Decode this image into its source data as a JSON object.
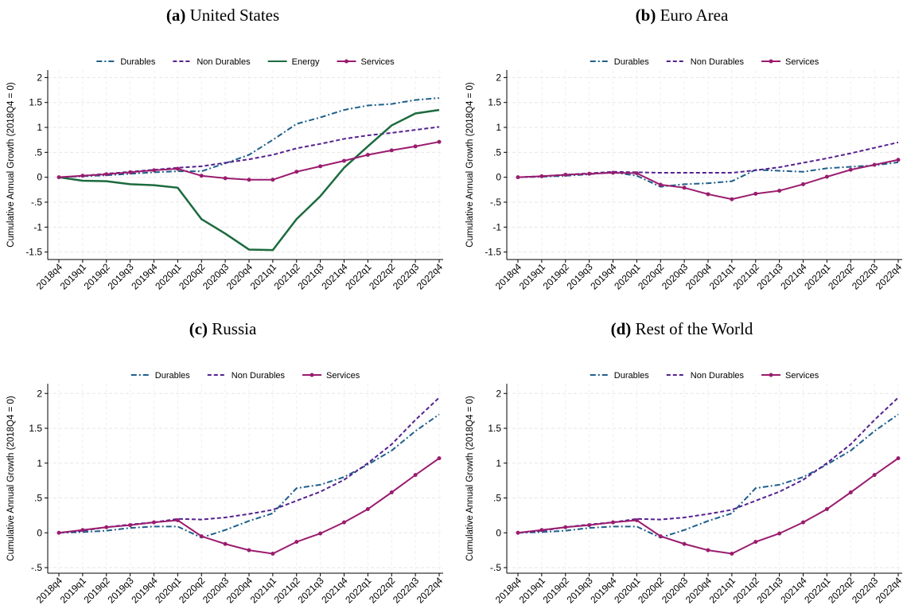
{
  "chart_data": [
    {
      "type": "line",
      "panel": "(a)",
      "title": "United States",
      "y_label": "Cumulative Annual Growth (2018Q4 = 0)",
      "categories": [
        "2018q4",
        "2019q1",
        "2019q2",
        "2019q3",
        "2019q4",
        "2020q1",
        "2020q2",
        "2020q3",
        "2020q4",
        "2021q1",
        "2021q2",
        "2021q3",
        "2021q4",
        "2022q1",
        "2022q2",
        "2022q3",
        "2022q4"
      ],
      "ylim": [
        -1.65,
        2.15
      ],
      "yticks": [
        {
          "value": -1.5,
          "label": "-1.5"
        },
        -1,
        {
          "value": -0.5,
          "label": "-.5"
        },
        0,
        {
          "value": 0.5,
          "label": ".5"
        },
        1,
        1.5,
        2
      ],
      "grid": true,
      "series": [
        {
          "name": "Durables",
          "color": "#1f5f8b",
          "dash": "dashdot",
          "values": [
            0,
            0.02,
            0.04,
            0.07,
            0.1,
            0.12,
            0.12,
            0.28,
            0.45,
            0.75,
            1.07,
            1.2,
            1.35,
            1.44,
            1.47,
            1.55,
            1.59
          ]
        },
        {
          "name": "Non Durables",
          "color": "#55218f",
          "dash": "dashed",
          "values": [
            0,
            0.03,
            0.07,
            0.11,
            0.15,
            0.19,
            0.22,
            0.29,
            0.36,
            0.45,
            0.58,
            0.67,
            0.77,
            0.84,
            0.89,
            0.95,
            1.01
          ]
        },
        {
          "name": "Energy",
          "color": "#1c6b3e",
          "dash": "solid",
          "values": [
            0,
            -0.07,
            -0.08,
            -0.14,
            -0.16,
            -0.21,
            -0.84,
            -1.13,
            -1.45,
            -1.46,
            -0.84,
            -0.38,
            0.19,
            0.62,
            1.04,
            1.28,
            1.35
          ]
        },
        {
          "name": "Services",
          "color": "#9a1c6e",
          "dash": "solid",
          "markers": true,
          "values": [
            0,
            0.03,
            0.06,
            0.1,
            0.14,
            0.17,
            0.03,
            -0.02,
            -0.05,
            -0.05,
            0.11,
            0.22,
            0.33,
            0.45,
            0.54,
            0.62,
            0.71
          ]
        }
      ]
    },
    {
      "type": "line",
      "panel": "(b)",
      "title": "Euro Area",
      "y_label": "Cumulative Annual Growth (2018Q4 = 0)",
      "categories": [
        "2018q4",
        "2019q1",
        "2019q2",
        "2019q3",
        "2019q4",
        "2020q1",
        "2020q2",
        "2020q3",
        "2020q4",
        "2021q1",
        "2021q2",
        "2021q3",
        "2021q4",
        "2022q1",
        "2022q2",
        "2022q3",
        "2022q4"
      ],
      "ylim": [
        -1.65,
        2.15
      ],
      "yticks": [
        {
          "value": -1.5,
          "label": "-1.5"
        },
        -1,
        {
          "value": -0.5,
          "label": "-.5"
        },
        0,
        {
          "value": 0.5,
          "label": ".5"
        },
        1,
        1.5,
        2
      ],
      "grid": true,
      "series": [
        {
          "name": "Durables",
          "color": "#1f5f8b",
          "dash": "dashdot",
          "values": [
            0,
            0.01,
            0.03,
            0.06,
            0.1,
            0.03,
            -0.19,
            -0.14,
            -0.12,
            -0.08,
            0.15,
            0.13,
            0.11,
            0.18,
            0.21,
            0.24,
            0.3
          ]
        },
        {
          "name": "Non Durables",
          "color": "#55218f",
          "dash": "dashed",
          "values": [
            0,
            0.02,
            0.05,
            0.08,
            0.11,
            0.1,
            0.09,
            0.09,
            0.09,
            0.09,
            0.14,
            0.2,
            0.29,
            0.38,
            0.48,
            0.59,
            0.7
          ]
        },
        {
          "name": "Services",
          "color": "#9a1c6e",
          "dash": "solid",
          "markers": true,
          "values": [
            0,
            0.02,
            0.05,
            0.07,
            0.09,
            0.08,
            -0.15,
            -0.21,
            -0.34,
            -0.44,
            -0.33,
            -0.27,
            -0.14,
            0.01,
            0.15,
            0.25,
            0.35
          ]
        }
      ]
    },
    {
      "type": "line",
      "panel": "(c)",
      "title": "Russia",
      "y_label": "Cumulative Annual Growth (2018Q4 = 0)",
      "categories": [
        "2018q4",
        "2019q1",
        "2019q2",
        "2019q3",
        "2019q4",
        "2020q1",
        "2020q2",
        "2020q3",
        "2020q4",
        "2021q1",
        "2021q2",
        "2021q3",
        "2021q4",
        "2022q1",
        "2022q2",
        "2022q3",
        "2022q4"
      ],
      "ylim": [
        -0.58,
        2.14
      ],
      "yticks": [
        {
          "value": -0.5,
          "label": "-.5"
        },
        0,
        {
          "value": 0.5,
          "label": ".5"
        },
        1,
        1.5,
        2
      ],
      "grid": true,
      "series": [
        {
          "name": "Durables",
          "color": "#1f5f8b",
          "dash": "dashdot",
          "values": [
            0,
            0.01,
            0.03,
            0.07,
            0.09,
            0.09,
            -0.07,
            0.04,
            0.17,
            0.28,
            0.64,
            0.69,
            0.8,
            0.98,
            1.18,
            1.46,
            1.7
          ]
        },
        {
          "name": "Non Durables",
          "color": "#55218f",
          "dash": "dashed",
          "values": [
            0,
            0.03,
            0.08,
            0.12,
            0.15,
            0.2,
            0.19,
            0.22,
            0.27,
            0.33,
            0.46,
            0.59,
            0.76,
            1.0,
            1.27,
            1.62,
            1.94
          ]
        },
        {
          "name": "Services",
          "color": "#9a1c6e",
          "dash": "solid",
          "markers": true,
          "values": [
            0,
            0.04,
            0.08,
            0.11,
            0.15,
            0.18,
            -0.05,
            -0.16,
            -0.25,
            -0.3,
            -0.13,
            -0.01,
            0.15,
            0.34,
            0.58,
            0.83,
            1.07
          ]
        }
      ]
    },
    {
      "type": "line",
      "panel": "(d)",
      "title": "Rest of the World",
      "y_label": "Cumulative Annual Growth (2018Q4 = 0)",
      "categories": [
        "2018q4",
        "2019q1",
        "2019q2",
        "2019q3",
        "2019q4",
        "2020q1",
        "2020q2",
        "2020q3",
        "2020q4",
        "2021q1",
        "2021q2",
        "2021q3",
        "2021q4",
        "2022q1",
        "2022q2",
        "2022q3",
        "2022q4"
      ],
      "ylim": [
        -0.58,
        2.14
      ],
      "yticks": [
        {
          "value": -0.5,
          "label": "-.5"
        },
        0,
        {
          "value": 0.5,
          "label": ".5"
        },
        1,
        1.5,
        2
      ],
      "grid": true,
      "series": [
        {
          "name": "Durables",
          "color": "#1f5f8b",
          "dash": "dashdot",
          "values": [
            0,
            0.01,
            0.03,
            0.07,
            0.09,
            0.09,
            -0.07,
            0.04,
            0.17,
            0.28,
            0.64,
            0.69,
            0.8,
            0.98,
            1.18,
            1.46,
            1.7
          ]
        },
        {
          "name": "Non Durables",
          "color": "#55218f",
          "dash": "dashed",
          "values": [
            0,
            0.03,
            0.08,
            0.12,
            0.15,
            0.2,
            0.19,
            0.22,
            0.27,
            0.33,
            0.46,
            0.59,
            0.76,
            1.0,
            1.27,
            1.62,
            1.94
          ]
        },
        {
          "name": "Services",
          "color": "#9a1c6e",
          "dash": "solid",
          "markers": true,
          "values": [
            0,
            0.04,
            0.08,
            0.11,
            0.15,
            0.18,
            -0.05,
            -0.16,
            -0.25,
            -0.3,
            -0.13,
            -0.01,
            0.15,
            0.34,
            0.58,
            0.83,
            1.07
          ]
        }
      ]
    }
  ]
}
